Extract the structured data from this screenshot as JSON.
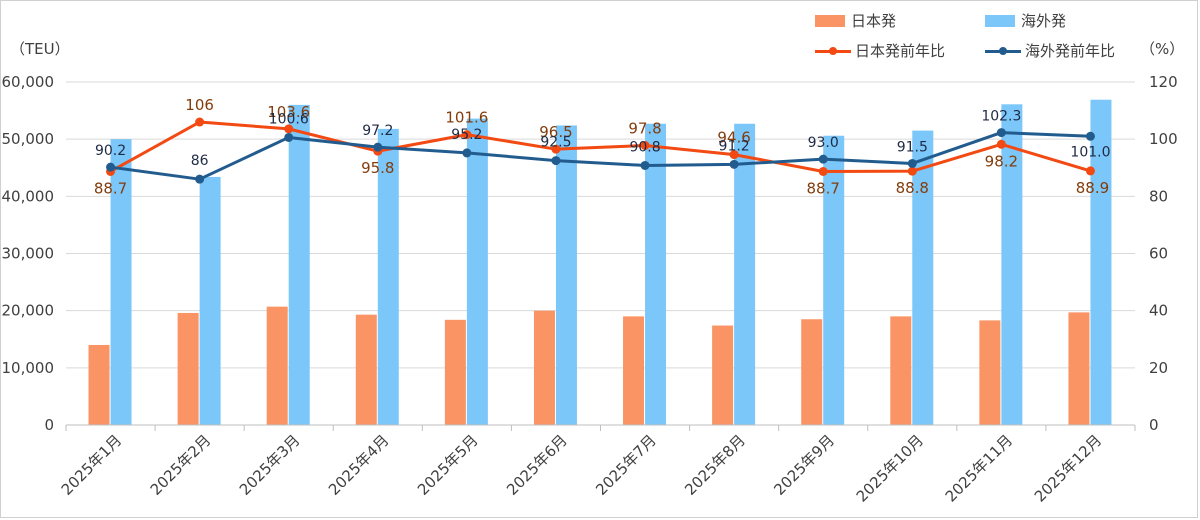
{
  "chart_data": {
    "type": "bar+line",
    "units": {
      "left": "（TEU）",
      "right": "（%）"
    },
    "categories": [
      "2025年1月",
      "2025年2月",
      "2025年3月",
      "2025年4月",
      "2025年5月",
      "2025年6月",
      "2025年7月",
      "2025年8月",
      "2025年9月",
      "2025年10月",
      "2025年11月",
      "2025年12月"
    ],
    "y_left": {
      "min": 0,
      "max": 60000,
      "step": 10000,
      "ticks": [
        "0",
        "10,000",
        "20,000",
        "30,000",
        "40,000",
        "50,000",
        "60,000"
      ]
    },
    "y_right": {
      "min": 0,
      "max": 120,
      "step": 20,
      "ticks": [
        "0",
        "20",
        "40",
        "60",
        "80",
        "100",
        "120"
      ]
    },
    "bar_series": [
      {
        "name": "日本発",
        "color": "#fa9464",
        "values": [
          14000,
          19600,
          20700,
          19300,
          18400,
          20000,
          19000,
          17400,
          18500,
          19000,
          18300,
          19700
        ]
      },
      {
        "name": "海外発",
        "color": "#7cc7f9",
        "values": [
          50000,
          43400,
          56000,
          51800,
          53600,
          52400,
          52700,
          52700,
          50600,
          51500,
          56100,
          56900
        ]
      }
    ],
    "line_series": [
      {
        "name": "日本発前年比",
        "color": "#f24a12",
        "label_color": "#833c0b",
        "values": [
          88.7,
          106,
          103.6,
          95.8,
          101.6,
          96.5,
          97.8,
          94.6,
          88.7,
          88.8,
          98.2,
          88.9
        ],
        "labels": [
          "88.7",
          "106",
          "103.6",
          "95.8",
          "101.6",
          "96.5",
          "97.8",
          "94.6",
          "88.7",
          "88.8",
          "98.2",
          "88.9"
        ]
      },
      {
        "name": "海外発前年比",
        "color": "#225c8e",
        "label_color": "#1f2a44",
        "values": [
          90.2,
          86,
          100.6,
          97.2,
          95.2,
          92.5,
          90.8,
          91.2,
          93.0,
          91.5,
          102.3,
          101.0
        ],
        "labels": [
          "90.2",
          "86",
          "100.6",
          "97.2",
          "95.2",
          "92.5",
          "90.8",
          "91.2",
          "93.0",
          "91.5",
          "102.3",
          "101.0"
        ]
      }
    ]
  }
}
